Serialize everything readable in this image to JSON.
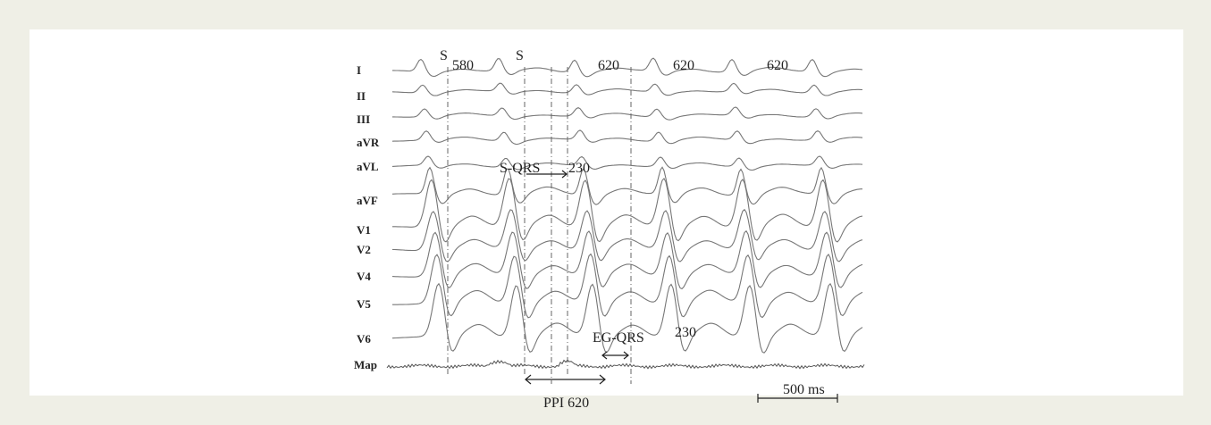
{
  "leads": [
    "I",
    "II",
    "III",
    "aVR",
    "aVL",
    "aVF",
    "V1",
    "V2",
    "V4",
    "V5",
    "V6",
    "Map"
  ],
  "annotations": {
    "stim1": "S",
    "stim2": "S",
    "cl_580": "580",
    "cl_620_a": "620",
    "cl_620_b": "620",
    "cl_620_c": "620",
    "s_qrs_label": "S-QRS",
    "s_qrs_value": "230",
    "eg_qrs_label": "EG-QRS",
    "eg_qrs_value": "230",
    "ppi_label": "PPI 620",
    "scale_bar": "500 ms"
  },
  "colors": {
    "background": "#efefe6",
    "panel": "#ffffff",
    "trace": "#777777",
    "text": "#222222"
  }
}
